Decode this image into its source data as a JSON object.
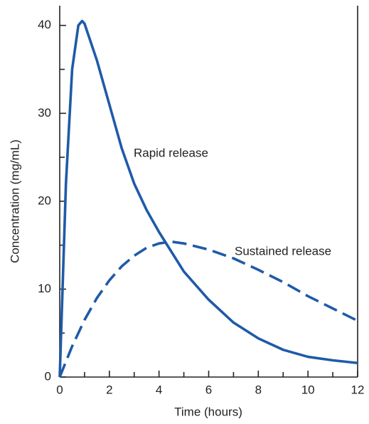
{
  "chart_data": {
    "type": "line",
    "x_label": "Time (hours)",
    "y_label": "Concentration (mg/mL)",
    "xlim": [
      0,
      12
    ],
    "ylim": [
      0,
      42
    ],
    "xticks": [
      0,
      2,
      4,
      6,
      8,
      10,
      12
    ],
    "yticks": [
      0,
      10,
      20,
      30,
      40
    ],
    "xticks_minor": [
      1,
      3,
      5,
      7,
      9,
      11
    ],
    "yticks_minor": [
      5,
      15,
      25,
      35
    ],
    "series": [
      {
        "name": "Rapid release",
        "color": "#1f5aa8",
        "style": "solid",
        "x": [
          0,
          0.25,
          0.5,
          0.75,
          0.9,
          1,
          1.5,
          2,
          2.5,
          3,
          3.5,
          4,
          5,
          6,
          7,
          8,
          9,
          10,
          11,
          12
        ],
        "values": [
          0,
          22,
          35,
          40,
          40.5,
          40.2,
          36,
          31,
          26,
          22,
          19,
          16.5,
          12,
          8.8,
          6.2,
          4.4,
          3.1,
          2.3,
          1.9,
          1.6
        ]
      },
      {
        "name": "Sustained release",
        "color": "#1f5aa8",
        "style": "dashed",
        "x": [
          0,
          0.5,
          1,
          1.5,
          2,
          2.5,
          3,
          3.5,
          4,
          4.5,
          5,
          6,
          7,
          8,
          9,
          10,
          11,
          12
        ],
        "values": [
          0,
          3.5,
          6.5,
          9,
          11,
          12.6,
          13.8,
          14.7,
          15.2,
          15.4,
          15.2,
          14.5,
          13.5,
          12.2,
          10.8,
          9.2,
          7.8,
          6.4
        ]
      }
    ]
  }
}
